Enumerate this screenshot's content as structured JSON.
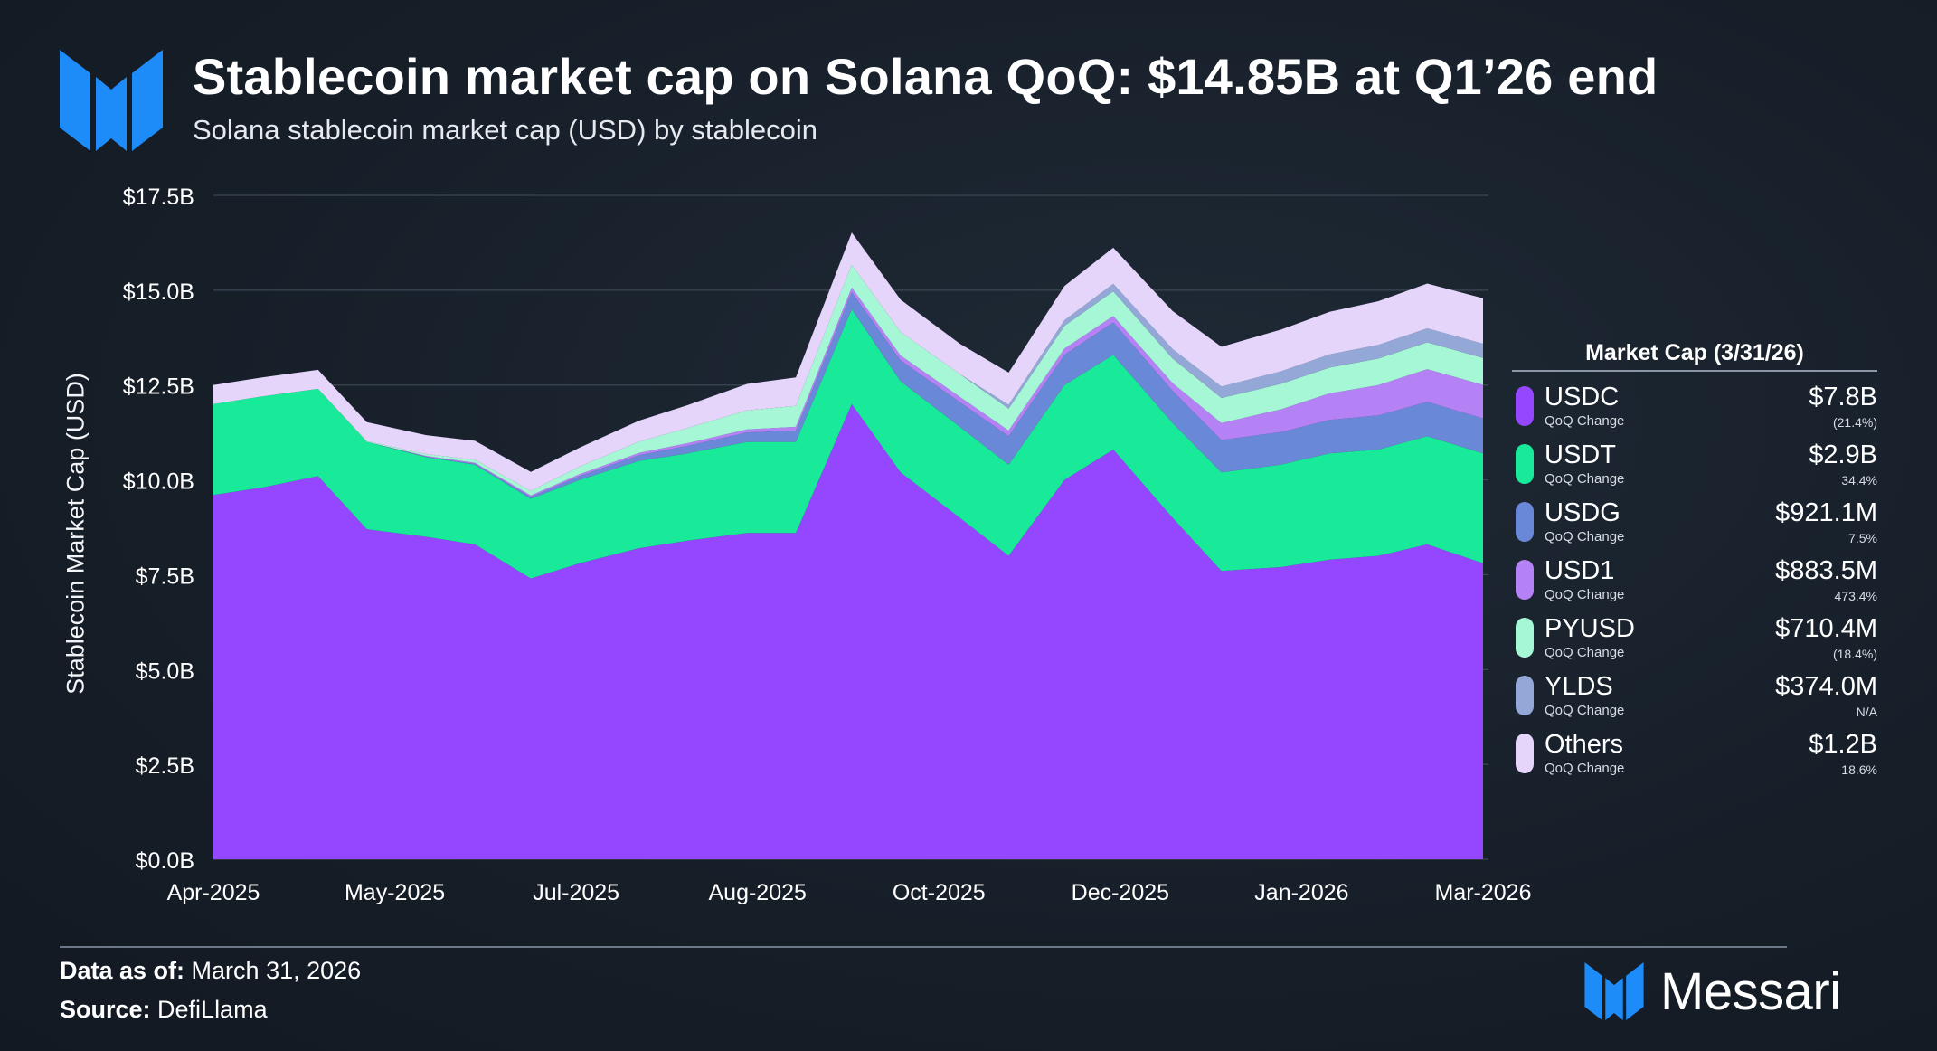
{
  "header": {
    "title": "Stablecoin market cap on Solana QoQ: $14.85B at Q1’26 end",
    "subtitle": "Solana stablecoin market cap (USD) by stablecoin"
  },
  "colors": {
    "USDC": "#9447ff",
    "USDT": "#18ea99",
    "USDG": "#6a88d8",
    "USD1": "#b582f6",
    "PYUSD": "#a6f7d6",
    "YLDS": "#93a8d6",
    "Others": "#e6d5fb",
    "brand_blue": "#1d8cf8"
  },
  "chart_data": {
    "type": "area",
    "stacked": true,
    "title": "Stablecoin market cap on Solana QoQ: $14.85B at Q1’26 end",
    "subtitle": "Solana stablecoin market cap (USD) by stablecoin",
    "ylabel": "Stablecoin Market Cap (USD)",
    "xlabel": "",
    "ylim": [
      0,
      17.5
    ],
    "y_unit": "$B",
    "y_ticks": [
      "$0.0B",
      "$2.5B",
      "$5.0B",
      "$7.5B",
      "$10.0B",
      "$12.5B",
      "$15.0B",
      "$17.5B"
    ],
    "x_ticks": [
      "Apr-2025",
      "May-2025",
      "Jul-2025",
      "Aug-2025",
      "Oct-2025",
      "Dec-2025",
      "Jan-2026",
      "Mar-2026"
    ],
    "grid": true,
    "x": [
      "2025-04-01",
      "2025-04-15",
      "2025-05-01",
      "2025-05-15",
      "2025-06-01",
      "2025-06-15",
      "2025-07-01",
      "2025-07-15",
      "2025-08-01",
      "2025-08-15",
      "2025-09-01",
      "2025-09-15",
      "2025-10-01",
      "2025-10-15",
      "2025-11-01",
      "2025-11-15",
      "2025-12-01",
      "2025-12-15",
      "2026-01-01",
      "2026-01-15",
      "2026-02-01",
      "2026-02-15",
      "2026-03-01",
      "2026-03-15",
      "2026-03-31"
    ],
    "series": [
      {
        "name": "USDC",
        "values": [
          9.6,
          9.8,
          10.1,
          8.7,
          8.5,
          8.3,
          7.4,
          7.8,
          8.2,
          8.4,
          8.6,
          8.6,
          12.0,
          10.2,
          9.0,
          8.0,
          10.0,
          10.8,
          9.0,
          7.6,
          7.7,
          7.9,
          8.0,
          8.3,
          7.8
        ]
      },
      {
        "name": "USDT",
        "values": [
          2.4,
          2.4,
          2.3,
          2.3,
          2.1,
          2.1,
          2.1,
          2.2,
          2.3,
          2.3,
          2.4,
          2.4,
          2.5,
          2.4,
          2.4,
          2.4,
          2.5,
          2.5,
          2.5,
          2.6,
          2.7,
          2.8,
          2.8,
          2.85,
          2.9
        ]
      },
      {
        "name": "USDG",
        "values": [
          0.0,
          0.0,
          0.0,
          0.0,
          0.01,
          0.02,
          0.05,
          0.1,
          0.15,
          0.2,
          0.25,
          0.3,
          0.45,
          0.55,
          0.65,
          0.75,
          0.8,
          0.85,
          0.85,
          0.85,
          0.86,
          0.88,
          0.9,
          0.91,
          0.921
        ]
      },
      {
        "name": "USD1",
        "values": [
          0.0,
          0.0,
          0.0,
          0.0,
          0.02,
          0.03,
          0.04,
          0.05,
          0.06,
          0.07,
          0.08,
          0.1,
          0.12,
          0.13,
          0.14,
          0.15,
          0.16,
          0.17,
          0.2,
          0.45,
          0.6,
          0.7,
          0.8,
          0.86,
          0.8835
        ]
      },
      {
        "name": "PYUSD",
        "values": [
          0.0,
          0.0,
          0.0,
          0.02,
          0.05,
          0.08,
          0.12,
          0.2,
          0.3,
          0.4,
          0.5,
          0.55,
          0.6,
          0.62,
          0.6,
          0.58,
          0.6,
          0.65,
          0.65,
          0.66,
          0.67,
          0.68,
          0.7,
          0.705,
          0.7104
        ]
      },
      {
        "name": "YLDS",
        "values": [
          0.0,
          0.0,
          0.0,
          0.0,
          0.0,
          0.0,
          0.0,
          0.0,
          0.0,
          0.0,
          0.0,
          0.0,
          0.0,
          0.0,
          0.0,
          0.1,
          0.15,
          0.2,
          0.25,
          0.3,
          0.33,
          0.35,
          0.36,
          0.37,
          0.374
        ]
      },
      {
        "name": "Others",
        "values": [
          0.5,
          0.5,
          0.5,
          0.5,
          0.5,
          0.5,
          0.5,
          0.5,
          0.55,
          0.6,
          0.7,
          0.75,
          0.85,
          0.85,
          0.8,
          0.85,
          0.9,
          0.95,
          1.0,
          1.05,
          1.1,
          1.12,
          1.15,
          1.18,
          1.2
        ]
      }
    ]
  },
  "legend": {
    "title": "Market Cap (3/31/26)",
    "items": [
      {
        "name": "USDC",
        "sub": "QoQ Change",
        "value": "$7.8B",
        "change": "(21.4%)",
        "color": "#9447ff"
      },
      {
        "name": "USDT",
        "sub": "QoQ Change",
        "value": "$2.9B",
        "change": "34.4%",
        "color": "#18ea99"
      },
      {
        "name": "USDG",
        "sub": "QoQ Change",
        "value": "$921.1M",
        "change": "7.5%",
        "color": "#6a88d8"
      },
      {
        "name": "USD1",
        "sub": "QoQ Change",
        "value": "$883.5M",
        "change": "473.4%",
        "color": "#b582f6"
      },
      {
        "name": "PYUSD",
        "sub": "QoQ Change",
        "value": "$710.4M",
        "change": "(18.4%)",
        "color": "#a6f7d6"
      },
      {
        "name": "YLDS",
        "sub": "QoQ Change",
        "value": "$374.0M",
        "change": "N/A",
        "color": "#93a8d6"
      },
      {
        "name": "Others",
        "sub": "QoQ Change",
        "value": "$1.2B",
        "change": "18.6%",
        "color": "#e6d5fb"
      }
    ]
  },
  "footer": {
    "data_as_of_label": "Data as of:",
    "data_as_of_value": " March 31, 2026",
    "source_label": "Source:",
    "source_value": " DefiLlama",
    "brand": "Messari"
  }
}
